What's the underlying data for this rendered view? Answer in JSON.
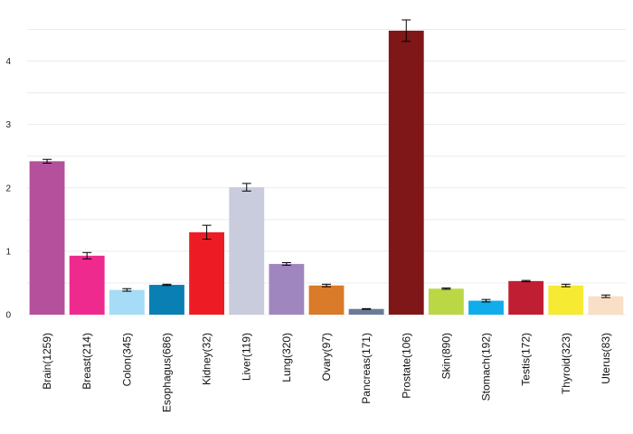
{
  "chart_data": {
    "type": "bar",
    "title": "",
    "xlabel": "",
    "ylabel": "",
    "ylim": [
      0,
      4.65
    ],
    "yticks": [
      0,
      1,
      2,
      3,
      4
    ],
    "grid": true,
    "categories": [
      "Brain(1259)",
      "Breast(214)",
      "Colon(345)",
      "Esophagus(686)",
      "Kidney(32)",
      "Liver(119)",
      "Lung(320)",
      "Ovary(97)",
      "Pancreas(171)",
      "Prostate(106)",
      "Skin(890)",
      "Stomach(192)",
      "Testis(172)",
      "Thyroid(323)",
      "Uterus(83)"
    ],
    "values": [
      2.42,
      0.93,
      0.39,
      0.47,
      1.3,
      2.01,
      0.8,
      0.46,
      0.09,
      4.48,
      0.41,
      0.22,
      0.53,
      0.46,
      0.29
    ],
    "errors": [
      0.03,
      0.05,
      0.02,
      0.01,
      0.11,
      0.06,
      0.02,
      0.02,
      0.005,
      0.17,
      0.01,
      0.02,
      0.01,
      0.02,
      0.02
    ],
    "colors": [
      "#b5509d",
      "#ee2a8f",
      "#a6dcf6",
      "#0a7fb3",
      "#ed1c24",
      "#c9ccdc",
      "#a086bf",
      "#d97b29",
      "#6b7a99",
      "#7f1718",
      "#bcd746",
      "#10acec",
      "#c01e33",
      "#f6ea33",
      "#f9dfc6"
    ]
  }
}
